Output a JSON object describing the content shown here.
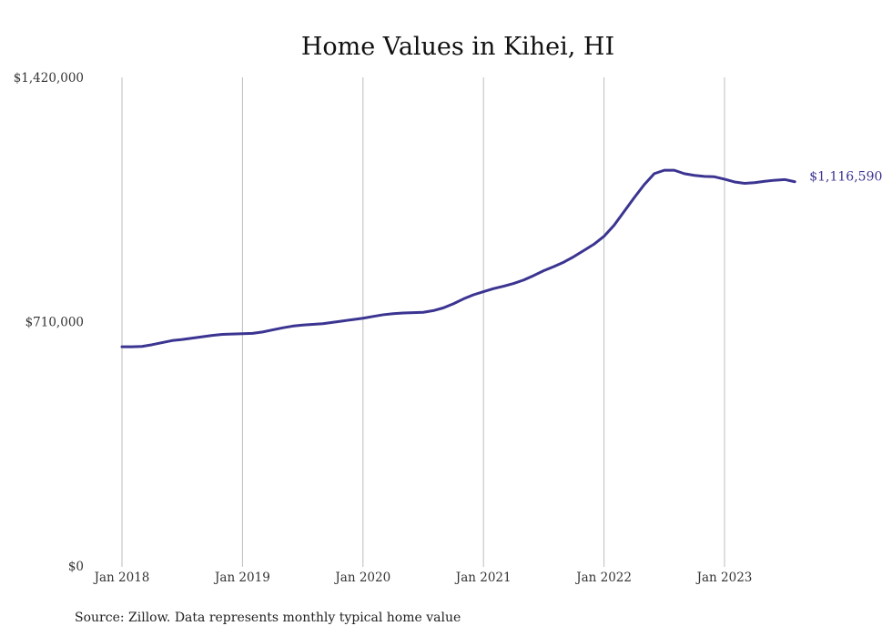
{
  "chart_data": {
    "type": "line",
    "title": "Home Values in Kihei, HI",
    "xlabel": "",
    "ylabel": "",
    "ylim": [
      0,
      1420000
    ],
    "grid": "vertical-only",
    "legend": "none",
    "y_ticks": [
      {
        "value": 0,
        "label": "$0"
      },
      {
        "value": 710000,
        "label": "$710,000"
      },
      {
        "value": 1420000,
        "label": "$1,420,000"
      }
    ],
    "x_ticks": [
      {
        "value": "2018-01",
        "label": "Jan 2018"
      },
      {
        "value": "2019-01",
        "label": "Jan 2019"
      },
      {
        "value": "2020-01",
        "label": "Jan 2020"
      },
      {
        "value": "2021-01",
        "label": "Jan 2021"
      },
      {
        "value": "2022-01",
        "label": "Jan 2022"
      },
      {
        "value": "2023-01",
        "label": "Jan 2023"
      }
    ],
    "end_label": "$1,116,590",
    "series": [
      {
        "color": "#3b3491",
        "x": [
          "2018-01",
          "2018-02",
          "2018-03",
          "2018-04",
          "2018-05",
          "2018-06",
          "2018-07",
          "2018-08",
          "2018-09",
          "2018-10",
          "2018-11",
          "2018-12",
          "2019-01",
          "2019-02",
          "2019-03",
          "2019-04",
          "2019-05",
          "2019-06",
          "2019-07",
          "2019-08",
          "2019-09",
          "2019-10",
          "2019-11",
          "2019-12",
          "2020-01",
          "2020-02",
          "2020-03",
          "2020-04",
          "2020-05",
          "2020-06",
          "2020-07",
          "2020-08",
          "2020-09",
          "2020-10",
          "2020-11",
          "2020-12",
          "2021-01",
          "2021-02",
          "2021-03",
          "2021-04",
          "2021-05",
          "2021-06",
          "2021-07",
          "2021-08",
          "2021-09",
          "2021-10",
          "2021-11",
          "2021-12",
          "2022-01",
          "2022-02",
          "2022-03",
          "2022-04",
          "2022-05",
          "2022-06",
          "2022-07",
          "2022-08",
          "2022-09",
          "2022-10",
          "2022-11",
          "2022-12",
          "2023-01",
          "2023-02",
          "2023-03",
          "2023-04",
          "2023-05",
          "2023-06",
          "2023-07",
          "2023-08"
        ],
        "values": [
          637000,
          637000,
          638000,
          643000,
          649000,
          655000,
          658000,
          662000,
          666000,
          670000,
          673000,
          674000,
          675000,
          676000,
          680000,
          686000,
          692000,
          697000,
          700000,
          702000,
          704000,
          708000,
          712000,
          716000,
          720000,
          725000,
          730000,
          733000,
          735000,
          736000,
          737000,
          742000,
          750000,
          762000,
          776000,
          788000,
          797000,
          806000,
          813000,
          821000,
          831000,
          844000,
          858000,
          870000,
          883000,
          899000,
          917000,
          935000,
          958000,
          990000,
          1030000,
          1070000,
          1108000,
          1140000,
          1150000,
          1150000,
          1140000,
          1135000,
          1132000,
          1131000,
          1124000,
          1116000,
          1112000,
          1114000,
          1118000,
          1121000,
          1123000,
          1116590
        ]
      }
    ],
    "source": "Source: Zillow. Data represents monthly typical home value"
  }
}
